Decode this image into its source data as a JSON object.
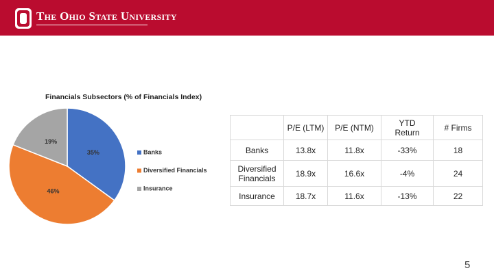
{
  "header": {
    "brand": "The Ohio State University"
  },
  "chart_data": {
    "type": "pie",
    "title": "Financials Subsectors (% of Financials Index)",
    "categories": [
      "Banks",
      "Diversified Financials",
      "Insurance"
    ],
    "values": [
      35,
      46,
      19
    ],
    "value_labels": [
      "35%",
      "46%",
      "19%"
    ],
    "colors": [
      "#4472c4",
      "#ed7d31",
      "#a5a5a5"
    ]
  },
  "table": {
    "columns": [
      "P/E (LTM)",
      "P/E (NTM)",
      "YTD Return",
      "# Firms"
    ],
    "rows": [
      [
        "Banks",
        "13.8x",
        "11.8x",
        "-33%",
        "18"
      ],
      [
        "Diversified Financials",
        "18.9x",
        "16.6x",
        "-4%",
        "24"
      ],
      [
        "Insurance",
        "18.7x",
        "11.6x",
        "-13%",
        "22"
      ]
    ]
  },
  "page_number": "5"
}
